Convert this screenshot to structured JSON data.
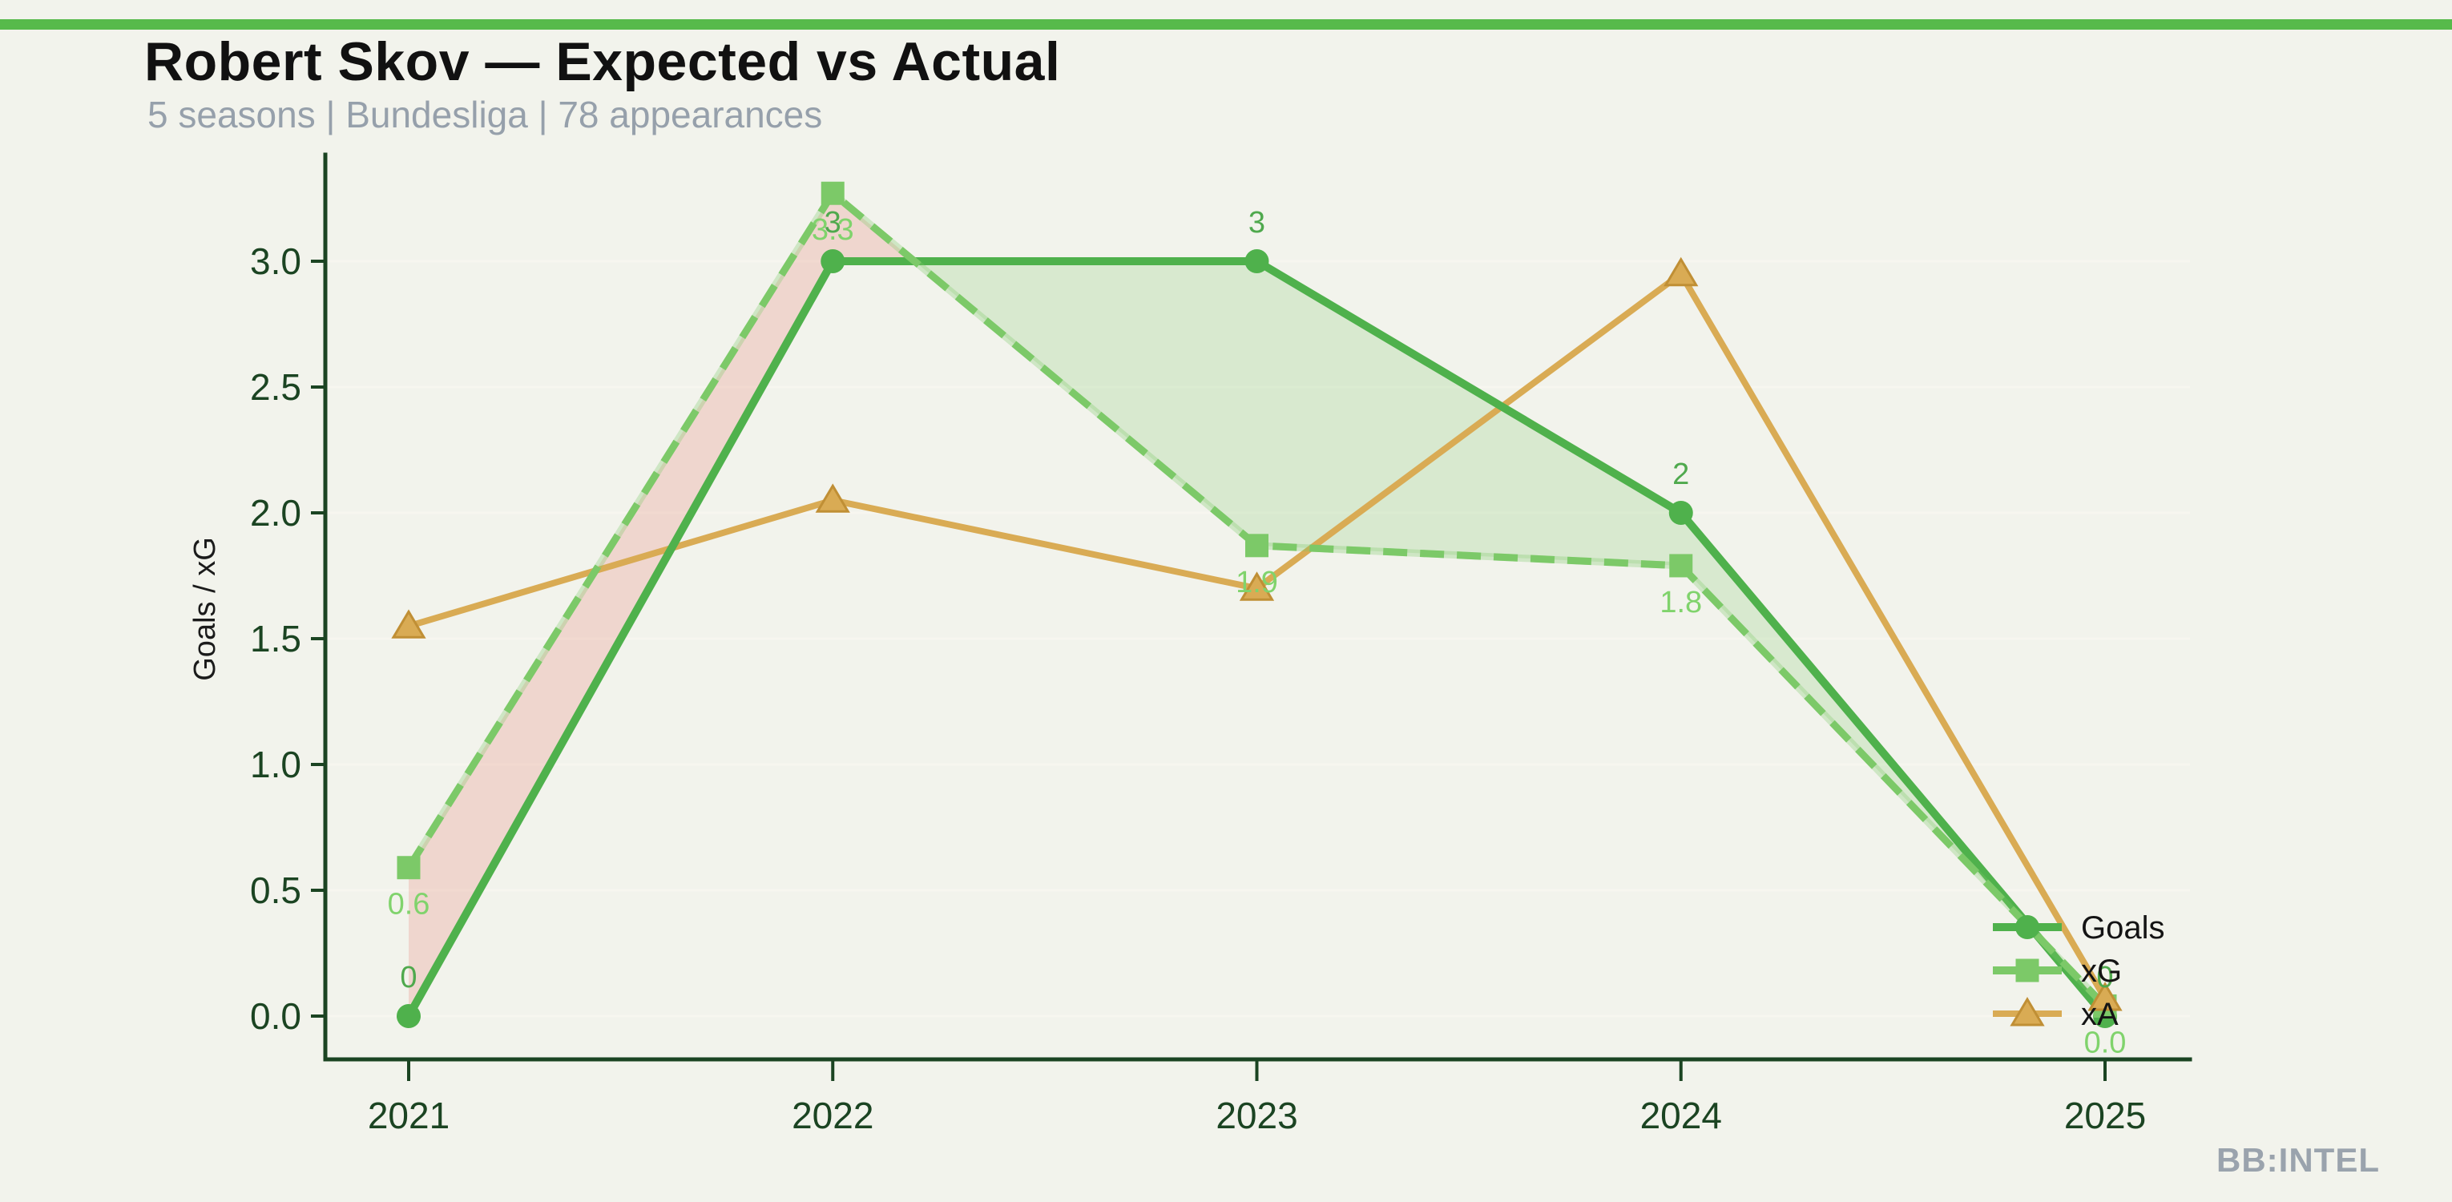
{
  "page": {
    "background": "#f2f3ec",
    "accent_bar_color": "#57ba4b",
    "title_color": "#111111",
    "subtitle_color": "#96a0ab",
    "watermark_color": "#9aa3ad"
  },
  "header": {
    "title": "Robert Skov — Expected vs Actual",
    "subtitle": "5 seasons | Bundesliga | 78 appearances"
  },
  "watermark": "BB:INTEL",
  "chart_data": {
    "type": "line",
    "x": [
      2021,
      2022,
      2023,
      2024,
      2025
    ],
    "xtick_labels": [
      "2021",
      "2022",
      "2023",
      "2024",
      "2025"
    ],
    "ylabel": "Goals / xG",
    "ylim": [
      -0.18,
      3.45
    ],
    "yticks": [
      0.0,
      0.5,
      1.0,
      1.5,
      2.0,
      2.5,
      3.0
    ],
    "ytick_labels": [
      "0.0",
      "0.5",
      "1.0",
      "1.5",
      "2.0",
      "2.5",
      "3.0"
    ],
    "grid": true,
    "grid_color": "#f7f6ef",
    "axis_color": "#1b4422",
    "axis_text_color": "#1b4422",
    "ylabel_color": "#1b1b1b",
    "legend_position": "lower right",
    "legend_text_color": "#141414",
    "series": [
      {
        "name": "Goals",
        "values": [
          0,
          3,
          3,
          2,
          0
        ],
        "point_labels": [
          "0",
          "3",
          "3",
          "2",
          "0"
        ],
        "label_side": "above",
        "label_color": "#4fa94d",
        "color": "#4fb14c",
        "marker": "circle",
        "line_style": "solid"
      },
      {
        "name": "xG",
        "values": [
          0.59,
          3.27,
          1.87,
          1.79,
          0.04
        ],
        "point_labels": [
          "0.6",
          "3.3",
          "1.9",
          "1.8",
          "0.0"
        ],
        "label_side": "below",
        "label_color": "#80d36c",
        "color": "#7cc968",
        "marker": "square",
        "line_style": "dashed"
      },
      {
        "name": "xA",
        "values": [
          1.55,
          2.05,
          1.7,
          2.95,
          0.07
        ],
        "point_labels": null,
        "label_color": null,
        "color": "#d9ab54",
        "marker": "triangle",
        "marker_edge_color": "#c08f35",
        "line_style": "solid"
      }
    ],
    "fills": {
      "xg_above_goals_color": "rgba(229,112,102,0.22)",
      "goals_above_xg_color": "rgba(124,202,103,0.22)"
    }
  }
}
